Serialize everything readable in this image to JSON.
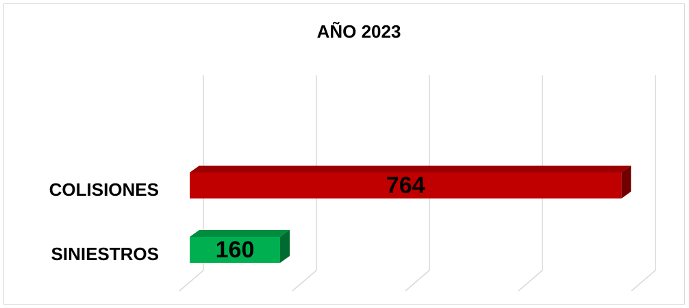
{
  "chart_data": {
    "type": "bar3d-horizontal",
    "title": "AÑO 2023",
    "categories": [
      "COLISIONES",
      "SINIESTROS"
    ],
    "values": [
      764,
      160
    ],
    "colors": [
      "#c00000",
      "#00b050"
    ],
    "xlim": [
      0,
      800
    ],
    "xticks": [
      0,
      200,
      400,
      600,
      800
    ],
    "grid": true
  }
}
